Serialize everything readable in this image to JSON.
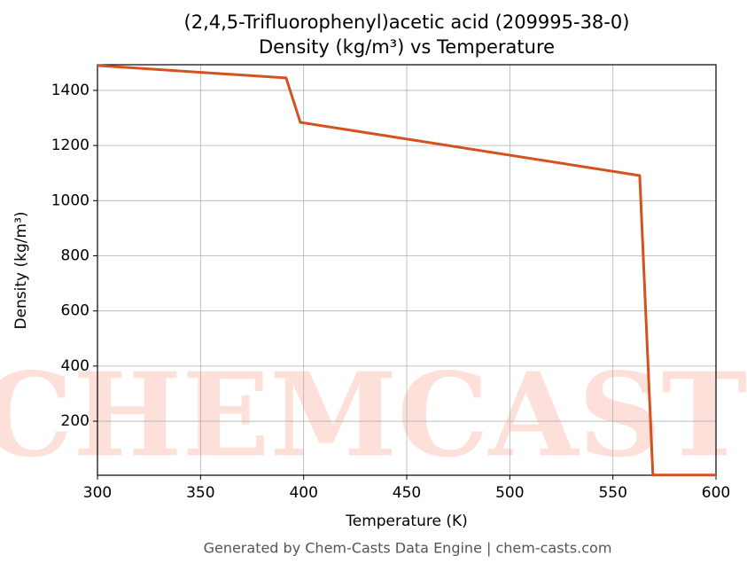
{
  "chart_data": {
    "type": "line",
    "title": "(2,4,5-Trifluorophenyl)acetic acid (209995-38-0)",
    "subtitle": "Density (kg/m³) vs Temperature",
    "x_label": "Temperature (K)",
    "y_label": "Density (kg/m³)",
    "footer": "Generated by Chem-Casts Data Engine | chem-casts.com",
    "watermark": "CHEMCASTS",
    "x": [
      300,
      391.5,
      398.4,
      563,
      569.4,
      600
    ],
    "series": [
      {
        "name": "Density",
        "color": "#d4521f",
        "values": [
          1490,
          1445,
          1284,
          1091,
          5,
          5
        ]
      }
    ],
    "xlim": [
      300,
      600
    ],
    "xticks": [
      300,
      350,
      400,
      450,
      500,
      550,
      600
    ],
    "ylim": [
      4,
      1493
    ],
    "yticks": [
      200,
      400,
      600,
      800,
      1000,
      1200,
      1400
    ],
    "grid": true
  }
}
